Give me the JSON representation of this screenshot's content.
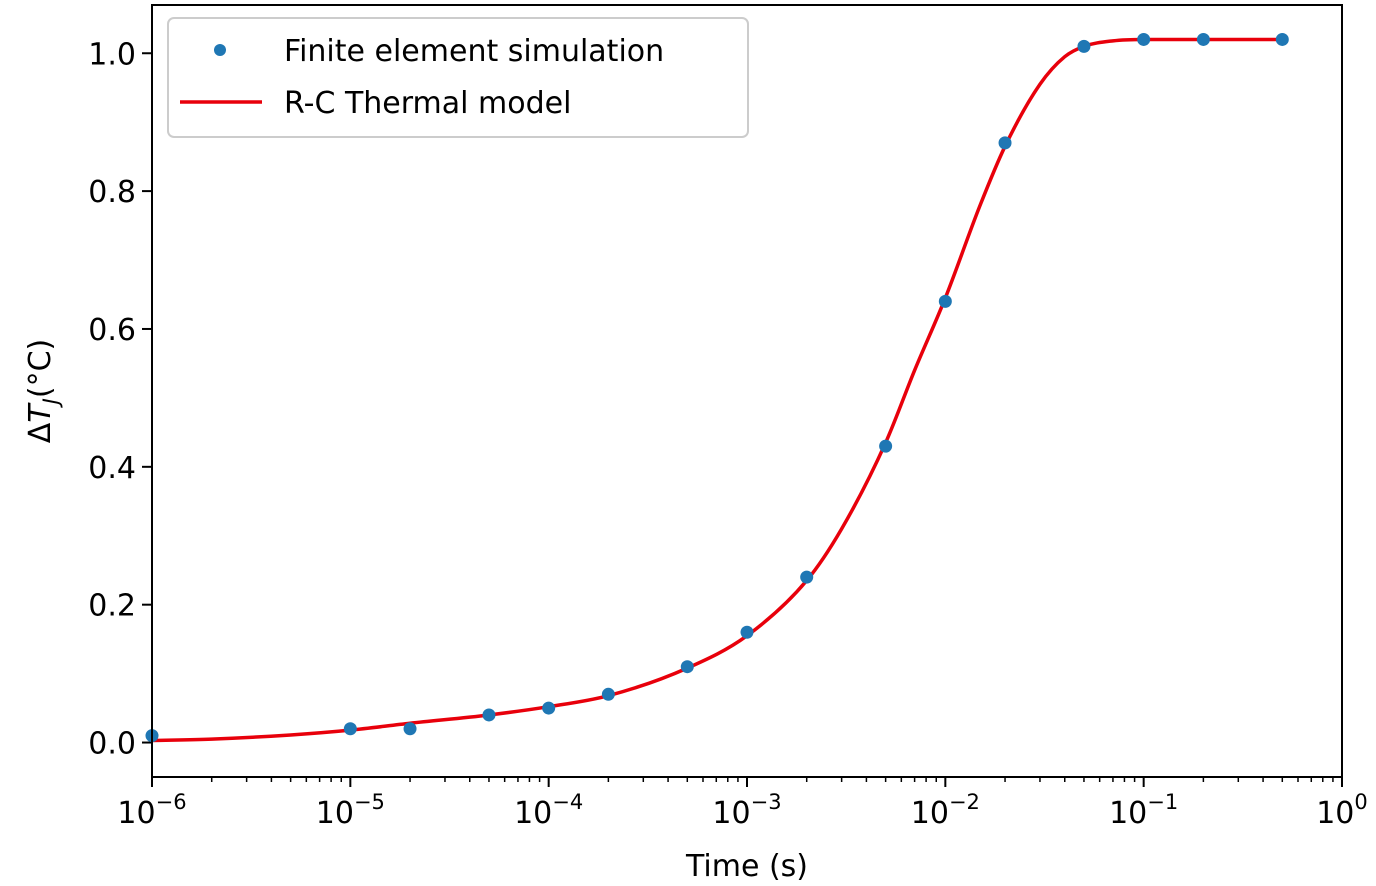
{
  "chart_data": {
    "type": "line",
    "xlabel": "Time (s)",
    "ylabel_parts": {
      "delta": "Δ",
      "var": "T",
      "sub": "J",
      "unit": "(°C)"
    },
    "xscale": "log",
    "xlim": [
      1e-06,
      1
    ],
    "ylim": [
      -0.05,
      1.07
    ],
    "x_ticks": [
      {
        "value": 1e-06,
        "base": "10",
        "exp": "−6"
      },
      {
        "value": 1e-05,
        "base": "10",
        "exp": "−5"
      },
      {
        "value": 0.0001,
        "base": "10",
        "exp": "−4"
      },
      {
        "value": 0.001,
        "base": "10",
        "exp": "−3"
      },
      {
        "value": 0.01,
        "base": "10",
        "exp": "−2"
      },
      {
        "value": 0.1,
        "base": "10",
        "exp": "−1"
      },
      {
        "value": 1,
        "base": "10",
        "exp": "0"
      }
    ],
    "y_ticks": [
      {
        "value": 0.0,
        "label": "0.0"
      },
      {
        "value": 0.2,
        "label": "0.2"
      },
      {
        "value": 0.4,
        "label": "0.4"
      },
      {
        "value": 0.6,
        "label": "0.6"
      },
      {
        "value": 0.8,
        "label": "0.8"
      },
      {
        "value": 1.0,
        "label": "1.0"
      }
    ],
    "grid": false,
    "legend_position": "top-left",
    "series": [
      {
        "name": "Finite element simulation",
        "kind": "scatter",
        "color": "#1f77b4",
        "x": [
          1e-06,
          1e-05,
          2e-05,
          5e-05,
          0.0001,
          0.0002,
          0.0005,
          0.001,
          0.002,
          0.005,
          0.01,
          0.02,
          0.05,
          0.1,
          0.2,
          0.5
        ],
        "y": [
          0.01,
          0.02,
          0.02,
          0.04,
          0.05,
          0.07,
          0.11,
          0.16,
          0.24,
          0.43,
          0.64,
          0.87,
          1.01,
          1.02,
          1.02,
          1.02
        ]
      },
      {
        "name": "R-C Thermal model",
        "kind": "line",
        "color": "#e8000b",
        "x": [
          1e-06,
          2e-06,
          5e-06,
          1e-05,
          2e-05,
          5e-05,
          0.0001,
          0.0002,
          0.0005,
          0.001,
          0.002,
          0.003,
          0.005,
          0.007,
          0.01,
          0.015,
          0.02,
          0.03,
          0.04,
          0.05,
          0.07,
          0.1,
          0.2,
          0.5
        ],
        "y": [
          0.003,
          0.005,
          0.011,
          0.018,
          0.028,
          0.04,
          0.052,
          0.068,
          0.108,
          0.155,
          0.235,
          0.31,
          0.435,
          0.54,
          0.645,
          0.78,
          0.865,
          0.955,
          0.995,
          1.01,
          1.018,
          1.02,
          1.02,
          1.02
        ]
      }
    ]
  }
}
